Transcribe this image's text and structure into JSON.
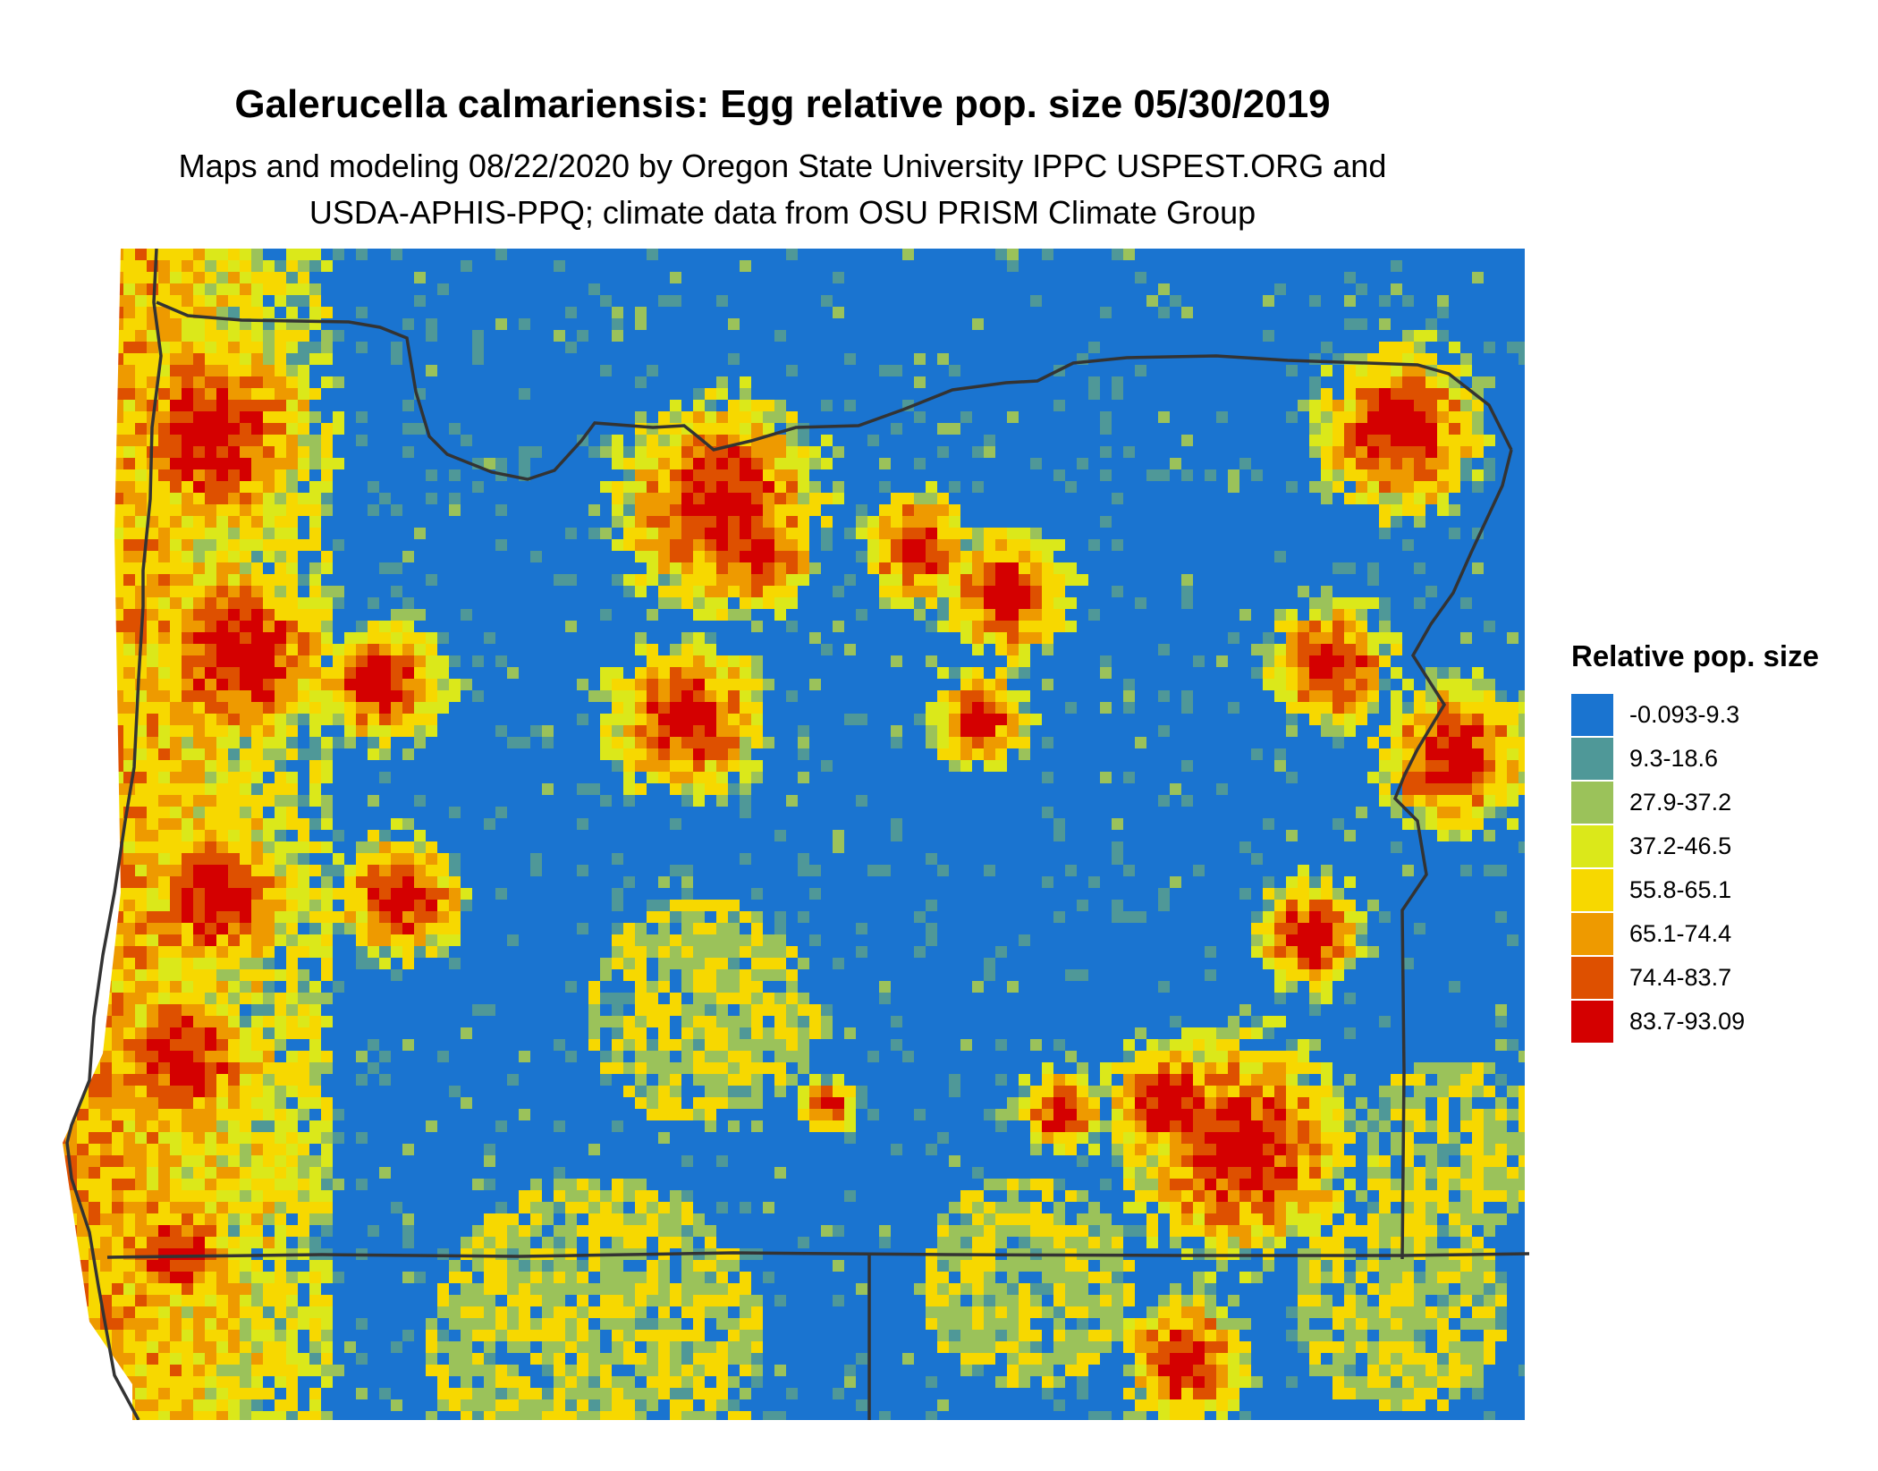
{
  "title": "Galerucella calmariensis: Egg relative pop. size 05/30/2019",
  "subtitle_line1": "Maps and modeling 08/22/2020 by Oregon State University IPPC USPEST.ORG and",
  "subtitle_line2": "USDA-APHIS-PPQ; climate data from OSU PRISM Climate Group",
  "legend": {
    "title": "Relative pop. size",
    "items": [
      {
        "label": "-0.093-9.3",
        "color": "#1a74d0"
      },
      {
        "label": "9.3-18.6",
        "color": "#4f9898"
      },
      {
        "label": "27.9-37.2",
        "color": "#9bc25a"
      },
      {
        "label": "37.2-46.5",
        "color": "#dbe81a"
      },
      {
        "label": "55.8-65.1",
        "color": "#f7d800"
      },
      {
        "label": "65.1-74.4",
        "color": "#ee9a00"
      },
      {
        "label": "74.4-83.7",
        "color": "#de5000"
      },
      {
        "label": "83.7-93.09",
        "color": "#d40000"
      }
    ]
  },
  "map": {
    "region": "Oregon",
    "border_color": "#333333"
  }
}
